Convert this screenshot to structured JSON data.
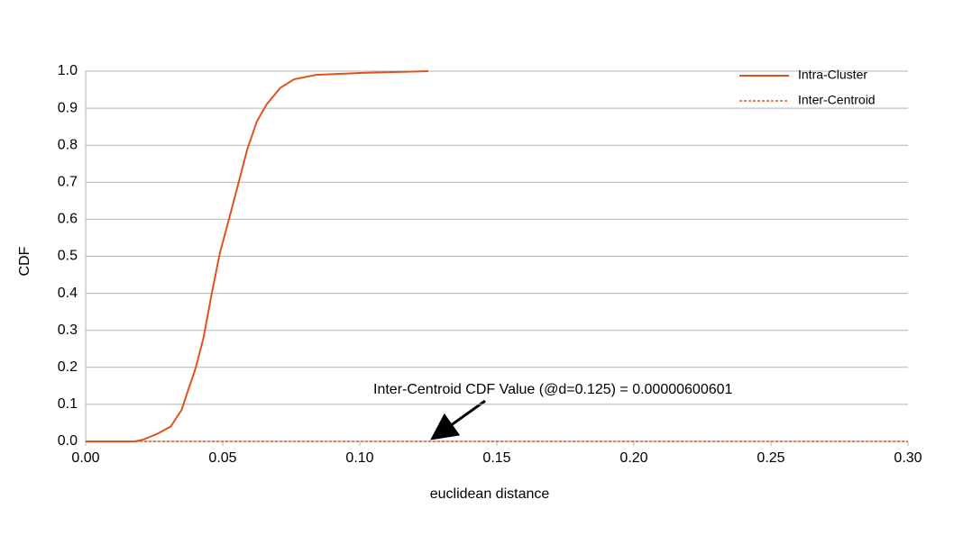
{
  "chart_data": {
    "type": "line",
    "x_label": "euclidean distance",
    "y_label": "CDF",
    "annotation": "Inter-Centroid CDF Value (@d=0.125) = 0.00000600601",
    "xlim": [
      0,
      0.3
    ],
    "ylim": [
      0,
      1
    ],
    "xticks": [
      {
        "value": 0,
        "label": "0.00"
      },
      {
        "value": 0.05,
        "label": "0.05"
      },
      {
        "value": 0.1,
        "label": "0.10"
      },
      {
        "value": 0.15,
        "label": "0.15"
      },
      {
        "value": 0.2,
        "label": "0.20"
      },
      {
        "value": 0.25,
        "label": "0.25"
      },
      {
        "value": 0.3,
        "label": "0.30"
      }
    ],
    "yticks": [
      {
        "value": 0,
        "label": "0.0"
      },
      {
        "value": 0.1,
        "label": "0.1"
      },
      {
        "value": 0.2,
        "label": "0.2"
      },
      {
        "value": 0.3,
        "label": "0.3"
      },
      {
        "value": 0.4,
        "label": "0.4"
      },
      {
        "value": 0.5,
        "label": "0.5"
      },
      {
        "value": 0.6,
        "label": "0.6"
      },
      {
        "value": 0.7,
        "label": "0.7"
      },
      {
        "value": 0.8,
        "label": "0.8"
      },
      {
        "value": 0.9,
        "label": "0.9"
      },
      {
        "value": 1,
        "label": "1.0"
      }
    ],
    "grid": true,
    "legend": "top-right",
    "series": [
      {
        "name": "Intra-Cluster",
        "color": "#e0531f",
        "dash": false,
        "x": [
          0,
          0.018,
          0.021,
          0.026,
          0.031,
          0.035,
          0.037,
          0.04,
          0.043,
          0.046,
          0.049,
          0.053,
          0.056,
          0.059,
          0.0625,
          0.066,
          0.071,
          0.076,
          0.084,
          0.1,
          0.125
        ],
        "values": [
          0,
          0,
          0.005,
          0.02,
          0.04,
          0.085,
          0.13,
          0.195,
          0.28,
          0.4,
          0.51,
          0.62,
          0.705,
          0.79,
          0.865,
          0.91,
          0.955,
          0.978,
          0.99,
          0.995,
          1.0
        ]
      },
      {
        "name": "Inter-Centroid",
        "color": "#e0531f",
        "dash": true,
        "x": [
          0,
          0.0625,
          0.0735,
          0.3
        ],
        "values": [
          0,
          0,
          0,
          0
        ]
      }
    ]
  }
}
